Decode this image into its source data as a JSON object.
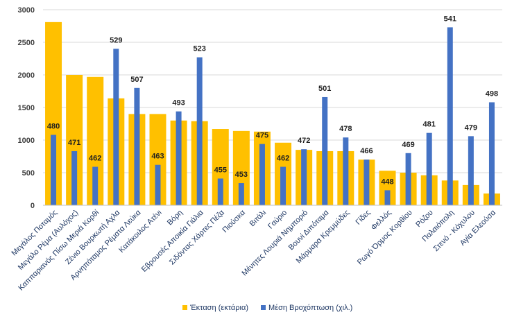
{
  "chart_data": {
    "type": "bar",
    "ylim": [
      0,
      3000
    ],
    "yticks": [
      0,
      500,
      1000,
      1500,
      2000,
      2500,
      3000
    ],
    "grid": true,
    "legend_position": "bottom",
    "categories": [
      "Μεγάλος Ποταμός",
      "Μεγάλο Ρέμα (Αυλόχος)",
      "Καππαριανός Πίσω Μεριά Κορθί",
      "Ζένιο Βουρκωτή Αχλα",
      "Αρνηπόταμος Ρέματα Λεύκα",
      "Κατάκοιλος Ατένι",
      "Βόρη",
      "Εβρουσές Απoικία Γιάλια",
      "Σιδόντας Χάρτες Πέζα",
      "Πιούσκα",
      "Βιτάλι",
      "Γαύριο",
      "Μένητες Λουριά Νημποριό",
      "Βουνί Διπόταμα",
      "Μάρμαρα Κρεμμύδες",
      "Γίδες",
      "Φελλός",
      "Ρωγό Όρμος Κορθίου",
      "Ρόζου",
      "Παλαιόπολη",
      "Στενό - Κόχυλου",
      "Αγία Ελεούσα"
    ],
    "series": [
      {
        "name": "Έκταση (εκτάρια)",
        "color": "#ffc000",
        "values": [
          2810,
          2000,
          1970,
          1640,
          1400,
          1400,
          1300,
          1290,
          1170,
          1140,
          1130,
          960,
          850,
          830,
          830,
          700,
          530,
          500,
          460,
          380,
          310,
          180
        ]
      },
      {
        "name": "Μέση Βροχόπτωση (χιλ.)",
        "color": "#4472c4",
        "values": [
          480,
          471,
          462,
          529,
          507,
          463,
          493,
          523,
          455,
          453,
          475,
          462,
          472,
          501,
          478,
          466,
          448,
          469,
          481,
          541,
          479,
          498
        ],
        "bar_heights": [
          1080,
          830,
          590,
          2400,
          1800,
          620,
          1440,
          2270,
          410,
          340,
          940,
          590,
          860,
          1660,
          1040,
          700,
          230,
          800,
          1110,
          2730,
          1060,
          1580
        ]
      }
    ]
  }
}
